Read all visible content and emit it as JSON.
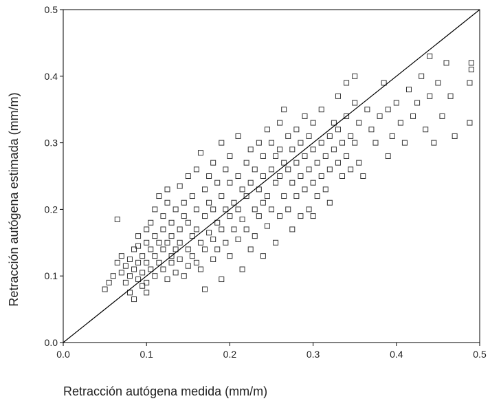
{
  "chart_data": {
    "type": "scatter",
    "title": "",
    "xlabel": "Retracción autógena medida (mm/m)",
    "ylabel": "Retracción autógena estimada (mm/m)",
    "xlim": [
      0.0,
      0.5
    ],
    "ylim": [
      0.0,
      0.5
    ],
    "xticks": [
      "0.0",
      "0.1",
      "0.2",
      "0.3",
      "0.4",
      "0.5"
    ],
    "yticks": [
      "0.0",
      "0.1",
      "0.2",
      "0.3",
      "0.4",
      "0.5"
    ],
    "grid": false,
    "legend": "none",
    "marker": "hollow-square",
    "reference_line": {
      "type": "identity",
      "from": [
        0.0,
        0.0
      ],
      "to": [
        0.5,
        0.5
      ]
    },
    "series": [
      {
        "points": [
          [
            0.05,
            0.08
          ],
          [
            0.055,
            0.09
          ],
          [
            0.06,
            0.1
          ],
          [
            0.065,
            0.185
          ],
          [
            0.065,
            0.12
          ],
          [
            0.07,
            0.105
          ],
          [
            0.07,
            0.13
          ],
          [
            0.075,
            0.115
          ],
          [
            0.075,
            0.09
          ],
          [
            0.08,
            0.1
          ],
          [
            0.08,
            0.125
          ],
          [
            0.08,
            0.075
          ],
          [
            0.085,
            0.14
          ],
          [
            0.085,
            0.11
          ],
          [
            0.085,
            0.065
          ],
          [
            0.09,
            0.12
          ],
          [
            0.09,
            0.145
          ],
          [
            0.09,
            0.095
          ],
          [
            0.09,
            0.16
          ],
          [
            0.095,
            0.13
          ],
          [
            0.095,
            0.105
          ],
          [
            0.095,
            0.085
          ],
          [
            0.1,
            0.15
          ],
          [
            0.1,
            0.17
          ],
          [
            0.1,
            0.12
          ],
          [
            0.1,
            0.09
          ],
          [
            0.1,
            0.075
          ],
          [
            0.105,
            0.14
          ],
          [
            0.105,
            0.18
          ],
          [
            0.105,
            0.11
          ],
          [
            0.11,
            0.2
          ],
          [
            0.11,
            0.16
          ],
          [
            0.11,
            0.13
          ],
          [
            0.11,
            0.1
          ],
          [
            0.115,
            0.22
          ],
          [
            0.115,
            0.15
          ],
          [
            0.115,
            0.12
          ],
          [
            0.12,
            0.19
          ],
          [
            0.12,
            0.17
          ],
          [
            0.12,
            0.14
          ],
          [
            0.12,
            0.11
          ],
          [
            0.125,
            0.23
          ],
          [
            0.125,
            0.21
          ],
          [
            0.125,
            0.15
          ],
          [
            0.125,
            0.095
          ],
          [
            0.13,
            0.18
          ],
          [
            0.13,
            0.16
          ],
          [
            0.13,
            0.13
          ],
          [
            0.13,
            0.12
          ],
          [
            0.135,
            0.2
          ],
          [
            0.135,
            0.14
          ],
          [
            0.135,
            0.105
          ],
          [
            0.14,
            0.235
          ],
          [
            0.14,
            0.17
          ],
          [
            0.14,
            0.15
          ],
          [
            0.14,
            0.125
          ],
          [
            0.145,
            0.19
          ],
          [
            0.145,
            0.21
          ],
          [
            0.145,
            0.1
          ],
          [
            0.15,
            0.25
          ],
          [
            0.15,
            0.18
          ],
          [
            0.15,
            0.14
          ],
          [
            0.15,
            0.115
          ],
          [
            0.155,
            0.22
          ],
          [
            0.155,
            0.16
          ],
          [
            0.155,
            0.13
          ],
          [
            0.16,
            0.26
          ],
          [
            0.16,
            0.2
          ],
          [
            0.16,
            0.17
          ],
          [
            0.16,
            0.12
          ],
          [
            0.165,
            0.285
          ],
          [
            0.165,
            0.15
          ],
          [
            0.165,
            0.11
          ],
          [
            0.17,
            0.23
          ],
          [
            0.17,
            0.19
          ],
          [
            0.17,
            0.14
          ],
          [
            0.17,
            0.08
          ],
          [
            0.175,
            0.25
          ],
          [
            0.175,
            0.21
          ],
          [
            0.175,
            0.165
          ],
          [
            0.18,
            0.27
          ],
          [
            0.18,
            0.2
          ],
          [
            0.18,
            0.155
          ],
          [
            0.18,
            0.125
          ],
          [
            0.185,
            0.24
          ],
          [
            0.185,
            0.18
          ],
          [
            0.185,
            0.14
          ],
          [
            0.19,
            0.3
          ],
          [
            0.19,
            0.22
          ],
          [
            0.19,
            0.17
          ],
          [
            0.19,
            0.095
          ],
          [
            0.195,
            0.26
          ],
          [
            0.195,
            0.2
          ],
          [
            0.195,
            0.15
          ],
          [
            0.2,
            0.28
          ],
          [
            0.2,
            0.24
          ],
          [
            0.2,
            0.19
          ],
          [
            0.2,
            0.13
          ],
          [
            0.205,
            0.21
          ],
          [
            0.205,
            0.17
          ],
          [
            0.21,
            0.31
          ],
          [
            0.21,
            0.25
          ],
          [
            0.21,
            0.2
          ],
          [
            0.21,
            0.155
          ],
          [
            0.215,
            0.23
          ],
          [
            0.215,
            0.185
          ],
          [
            0.215,
            0.11
          ],
          [
            0.22,
            0.27
          ],
          [
            0.22,
            0.22
          ],
          [
            0.22,
            0.17
          ],
          [
            0.225,
            0.29
          ],
          [
            0.225,
            0.24
          ],
          [
            0.225,
            0.14
          ],
          [
            0.23,
            0.26
          ],
          [
            0.23,
            0.2
          ],
          [
            0.23,
            0.16
          ],
          [
            0.235,
            0.3
          ],
          [
            0.235,
            0.23
          ],
          [
            0.235,
            0.19
          ],
          [
            0.24,
            0.28
          ],
          [
            0.24,
            0.25
          ],
          [
            0.24,
            0.21
          ],
          [
            0.24,
            0.13
          ],
          [
            0.245,
            0.32
          ],
          [
            0.245,
            0.22
          ],
          [
            0.245,
            0.175
          ],
          [
            0.25,
            0.3
          ],
          [
            0.25,
            0.26
          ],
          [
            0.25,
            0.2
          ],
          [
            0.255,
            0.28
          ],
          [
            0.255,
            0.24
          ],
          [
            0.255,
            0.15
          ],
          [
            0.26,
            0.33
          ],
          [
            0.26,
            0.29
          ],
          [
            0.26,
            0.25
          ],
          [
            0.26,
            0.19
          ],
          [
            0.265,
            0.35
          ],
          [
            0.265,
            0.27
          ],
          [
            0.265,
            0.22
          ],
          [
            0.27,
            0.31
          ],
          [
            0.27,
            0.26
          ],
          [
            0.27,
            0.2
          ],
          [
            0.275,
            0.29
          ],
          [
            0.275,
            0.24
          ],
          [
            0.275,
            0.17
          ],
          [
            0.28,
            0.32
          ],
          [
            0.28,
            0.27
          ],
          [
            0.28,
            0.22
          ],
          [
            0.285,
            0.3
          ],
          [
            0.285,
            0.25
          ],
          [
            0.285,
            0.19
          ],
          [
            0.29,
            0.34
          ],
          [
            0.29,
            0.28
          ],
          [
            0.29,
            0.23
          ],
          [
            0.295,
            0.31
          ],
          [
            0.295,
            0.26
          ],
          [
            0.295,
            0.2
          ],
          [
            0.3,
            0.33
          ],
          [
            0.3,
            0.29
          ],
          [
            0.3,
            0.24
          ],
          [
            0.3,
            0.19
          ],
          [
            0.305,
            0.27
          ],
          [
            0.305,
            0.22
          ],
          [
            0.31,
            0.35
          ],
          [
            0.31,
            0.3
          ],
          [
            0.31,
            0.25
          ],
          [
            0.315,
            0.28
          ],
          [
            0.315,
            0.23
          ],
          [
            0.32,
            0.31
          ],
          [
            0.32,
            0.26
          ],
          [
            0.32,
            0.21
          ],
          [
            0.325,
            0.33
          ],
          [
            0.325,
            0.29
          ],
          [
            0.33,
            0.37
          ],
          [
            0.33,
            0.32
          ],
          [
            0.33,
            0.27
          ],
          [
            0.335,
            0.3
          ],
          [
            0.335,
            0.25
          ],
          [
            0.34,
            0.39
          ],
          [
            0.34,
            0.34
          ],
          [
            0.34,
            0.28
          ],
          [
            0.345,
            0.31
          ],
          [
            0.345,
            0.26
          ],
          [
            0.35,
            0.4
          ],
          [
            0.35,
            0.36
          ],
          [
            0.35,
            0.3
          ],
          [
            0.355,
            0.33
          ],
          [
            0.355,
            0.27
          ],
          [
            0.36,
            0.25
          ],
          [
            0.365,
            0.35
          ],
          [
            0.37,
            0.32
          ],
          [
            0.375,
            0.3
          ],
          [
            0.38,
            0.34
          ],
          [
            0.385,
            0.39
          ],
          [
            0.39,
            0.35
          ],
          [
            0.39,
            0.28
          ],
          [
            0.395,
            0.31
          ],
          [
            0.4,
            0.36
          ],
          [
            0.405,
            0.33
          ],
          [
            0.41,
            0.3
          ],
          [
            0.415,
            0.38
          ],
          [
            0.42,
            0.34
          ],
          [
            0.425,
            0.36
          ],
          [
            0.43,
            0.4
          ],
          [
            0.435,
            0.32
          ],
          [
            0.44,
            0.43
          ],
          [
            0.44,
            0.37
          ],
          [
            0.445,
            0.3
          ],
          [
            0.45,
            0.39
          ],
          [
            0.455,
            0.34
          ],
          [
            0.46,
            0.42
          ],
          [
            0.465,
            0.37
          ],
          [
            0.47,
            0.31
          ],
          [
            0.49,
            0.42
          ],
          [
            0.49,
            0.41
          ],
          [
            0.488,
            0.39
          ],
          [
            0.488,
            0.33
          ]
        ]
      }
    ]
  }
}
